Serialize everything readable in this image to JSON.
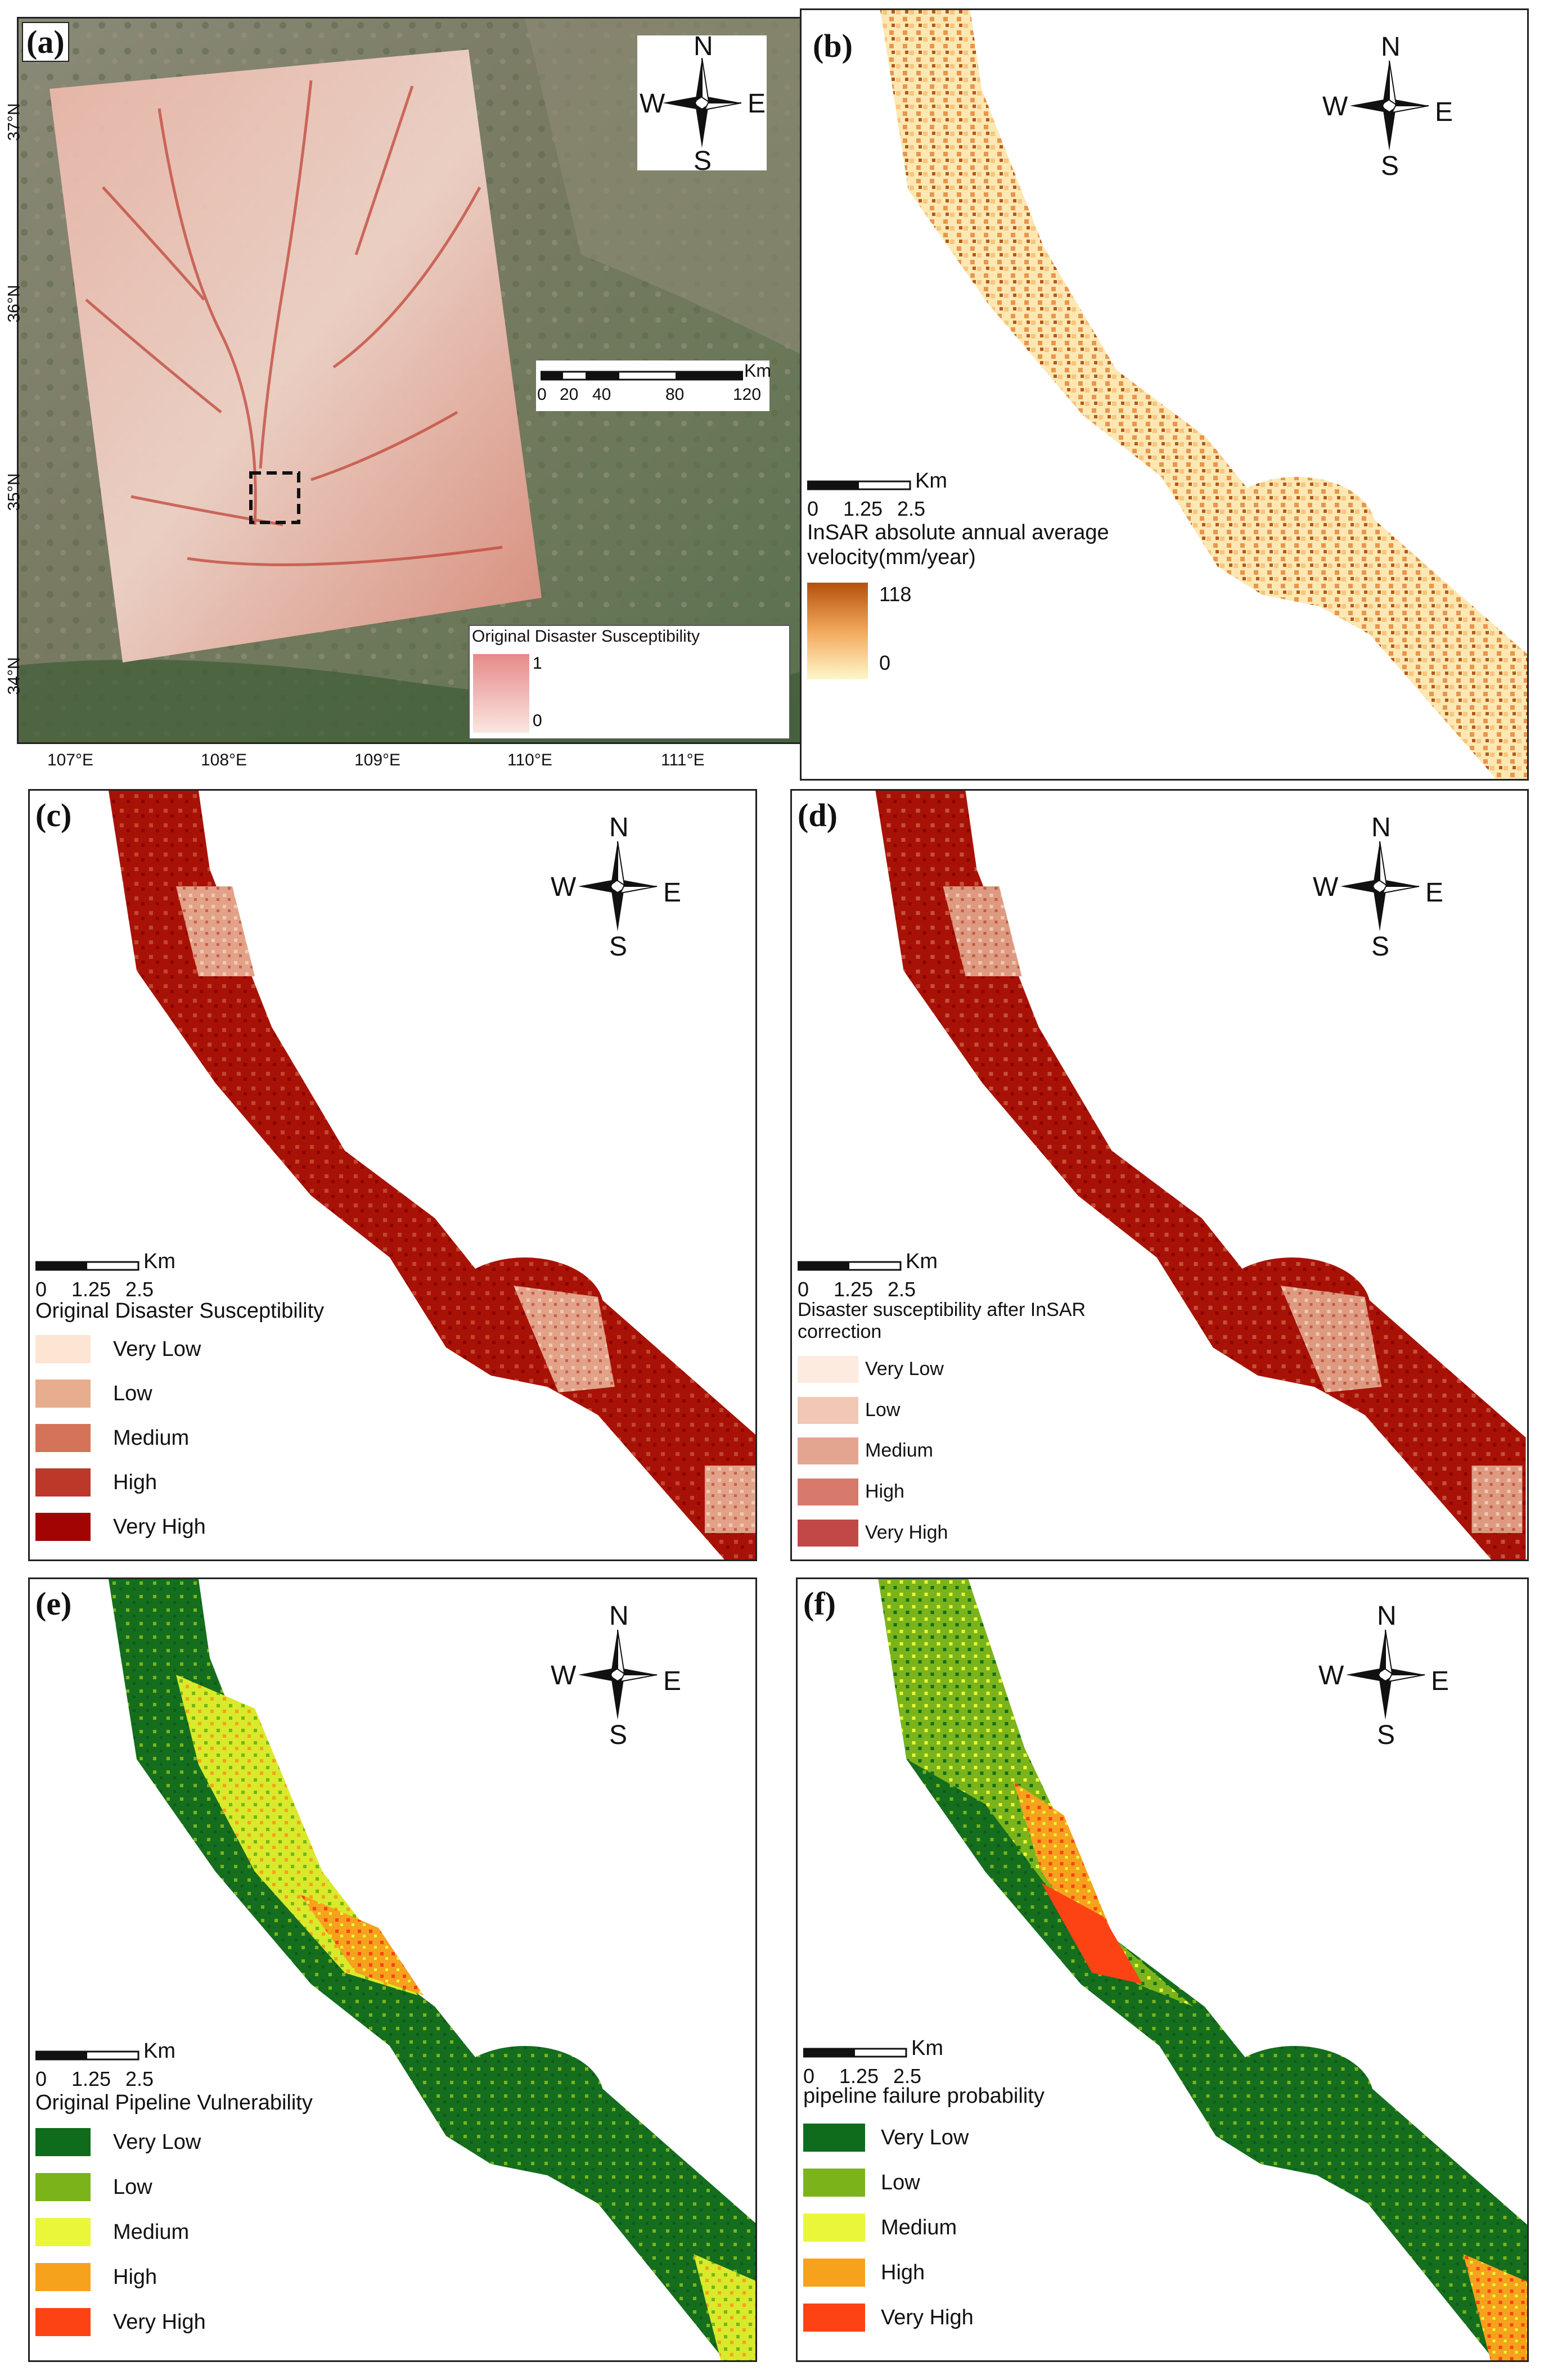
{
  "panels": {
    "a": {
      "label": "(a)",
      "compass": {
        "n": "N",
        "s": "S",
        "e": "E",
        "w": "W"
      },
      "scale": {
        "unit": "Km",
        "ticks": [
          "0",
          "20",
          "40",
          "80",
          "120"
        ]
      },
      "legend_title": "Original Disaster Susceptibility",
      "legend_high": "1",
      "legend_low": "0",
      "lon_labels": [
        "107°E",
        "108°E",
        "109°E",
        "110°E",
        "111°E"
      ],
      "lat_labels": [
        "37°N",
        "36°N",
        "35°N",
        "34°N"
      ]
    },
    "b": {
      "label": "(b)",
      "compass": {
        "n": "N",
        "s": "S",
        "e": "E",
        "w": "W"
      },
      "scale": {
        "unit": "Km",
        "ticks": [
          "0",
          "1.25",
          "2.5"
        ]
      },
      "legend_title": "InSAR absolute annual average velocity(mm/year)",
      "legend_high": "118",
      "legend_low": "0"
    },
    "c": {
      "label": "(c)",
      "compass": {
        "n": "N",
        "s": "S",
        "e": "E",
        "w": "W"
      },
      "scale": {
        "unit": "Km",
        "ticks": [
          "0",
          "1.25",
          "2.5"
        ]
      },
      "legend_title": "Original Disaster Susceptibility",
      "classes": [
        {
          "label": "Very Low",
          "color": "#fde5d3"
        },
        {
          "label": "Low",
          "color": "#e8ac8e"
        },
        {
          "label": "Medium",
          "color": "#d4735a"
        },
        {
          "label": "High",
          "color": "#bc3828"
        },
        {
          "label": "Very High",
          "color": "#a10402"
        }
      ]
    },
    "d": {
      "label": "(d)",
      "compass": {
        "n": "N",
        "s": "S",
        "e": "E",
        "w": "W"
      },
      "scale": {
        "unit": "Km",
        "ticks": [
          "0",
          "1.25",
          "2.5"
        ]
      },
      "legend_title": "Disaster susceptibility after InSAR correction",
      "classes": [
        {
          "label": "Very Low",
          "color": "#fdebe0"
        },
        {
          "label": "Low",
          "color": "#f1c7b5"
        },
        {
          "label": "Medium",
          "color": "#e3a58f"
        },
        {
          "label": "High",
          "color": "#d77a6c"
        },
        {
          "label": "Very High",
          "color": "#c24848"
        }
      ]
    },
    "e": {
      "label": "(e)",
      "compass": {
        "n": "N",
        "s": "S",
        "e": "E",
        "w": "W"
      },
      "scale": {
        "unit": "Km",
        "ticks": [
          "0",
          "1.25",
          "2.5"
        ]
      },
      "legend_title": "Original Pipeline Vulnerability",
      "classes": [
        {
          "label": "Very Low",
          "color": "#0f6c1d"
        },
        {
          "label": "Low",
          "color": "#7ab41a"
        },
        {
          "label": "Medium",
          "color": "#eaf63a"
        },
        {
          "label": "High",
          "color": "#f6a21c"
        },
        {
          "label": "Very High",
          "color": "#fd4213"
        }
      ]
    },
    "f": {
      "label": "(f)",
      "compass": {
        "n": "N",
        "s": "S",
        "e": "E",
        "w": "W"
      },
      "scale": {
        "unit": "Km",
        "ticks": [
          "0",
          "1.25",
          "2.5"
        ]
      },
      "legend_title": "pipeline failure probability",
      "classes": [
        {
          "label": "Very Low",
          "color": "#0f6c1d"
        },
        {
          "label": "Low",
          "color": "#7ab41a"
        },
        {
          "label": "Medium",
          "color": "#eaf63a"
        },
        {
          "label": "High",
          "color": "#f6a21c"
        },
        {
          "label": "Very High",
          "color": "#fd4213"
        }
      ]
    }
  }
}
